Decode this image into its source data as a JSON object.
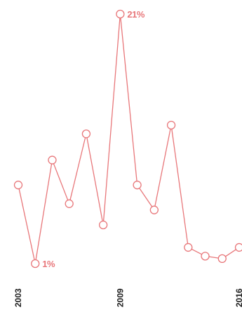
{
  "chart_data": {
    "type": "line",
    "x": [
      2003,
      2004,
      2005,
      2006,
      2007,
      2008,
      2009,
      2010,
      2011,
      2012,
      2013,
      2014,
      2015,
      2016
    ],
    "series": [
      {
        "values": [
          7.3,
          1,
          9.3,
          5.8,
          11.4,
          4.1,
          21,
          7.3,
          5.3,
          12.1,
          2.3,
          1.6,
          1.4,
          2.3
        ]
      }
    ],
    "annotations": [
      {
        "x": 2004,
        "label": "1%"
      },
      {
        "x": 2009,
        "label": "21%"
      }
    ],
    "x_tick_labels": [
      "2003",
      "2009",
      "2016"
    ],
    "ylim": [
      0,
      22
    ],
    "grid": false,
    "colors": {
      "line": "#e8777a",
      "label": "#e8777a",
      "tick": "#222222"
    }
  }
}
